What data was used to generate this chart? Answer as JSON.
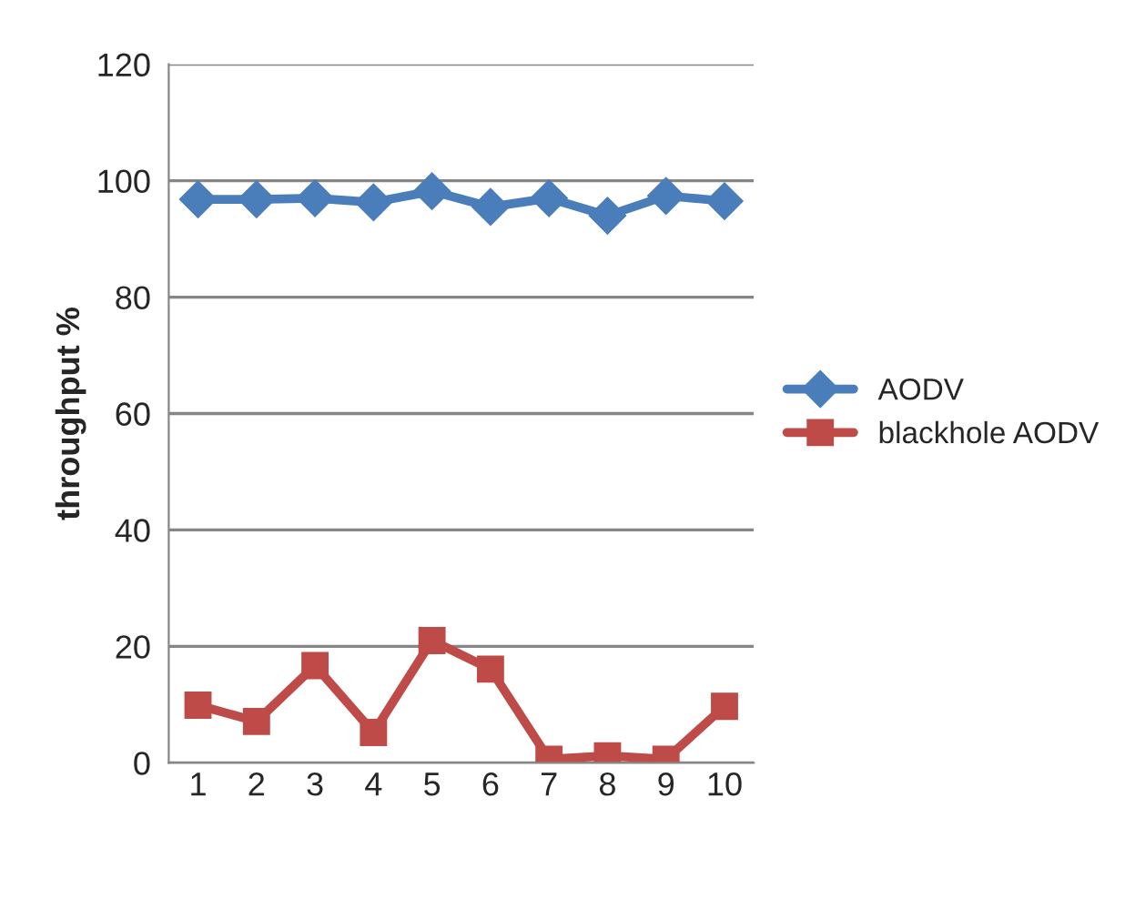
{
  "chart_data": {
    "type": "line",
    "ylabel": "throughput %",
    "categories": [
      "1",
      "2",
      "3",
      "4",
      "5",
      "6",
      "7",
      "8",
      "9",
      "10"
    ],
    "series": [
      {
        "name": "AODV",
        "color": "#4a7ebb",
        "marker": "diamond",
        "values": [
          96.8,
          96.8,
          97.0,
          96.3,
          98.2,
          95.5,
          97.0,
          94.0,
          97.4,
          96.5
        ]
      },
      {
        "name": "blackhole AODV",
        "color": "#be4b48",
        "marker": "square",
        "values": [
          9.9,
          7.1,
          16.7,
          5.2,
          21.0,
          16.1,
          0.6,
          1.2,
          0.6,
          9.7
        ]
      }
    ],
    "ylim": [
      0,
      120
    ],
    "yticks": [
      0,
      20,
      40,
      60,
      80,
      100,
      120
    ],
    "grid": "y",
    "legend": "right",
    "line_style": "solid"
  }
}
